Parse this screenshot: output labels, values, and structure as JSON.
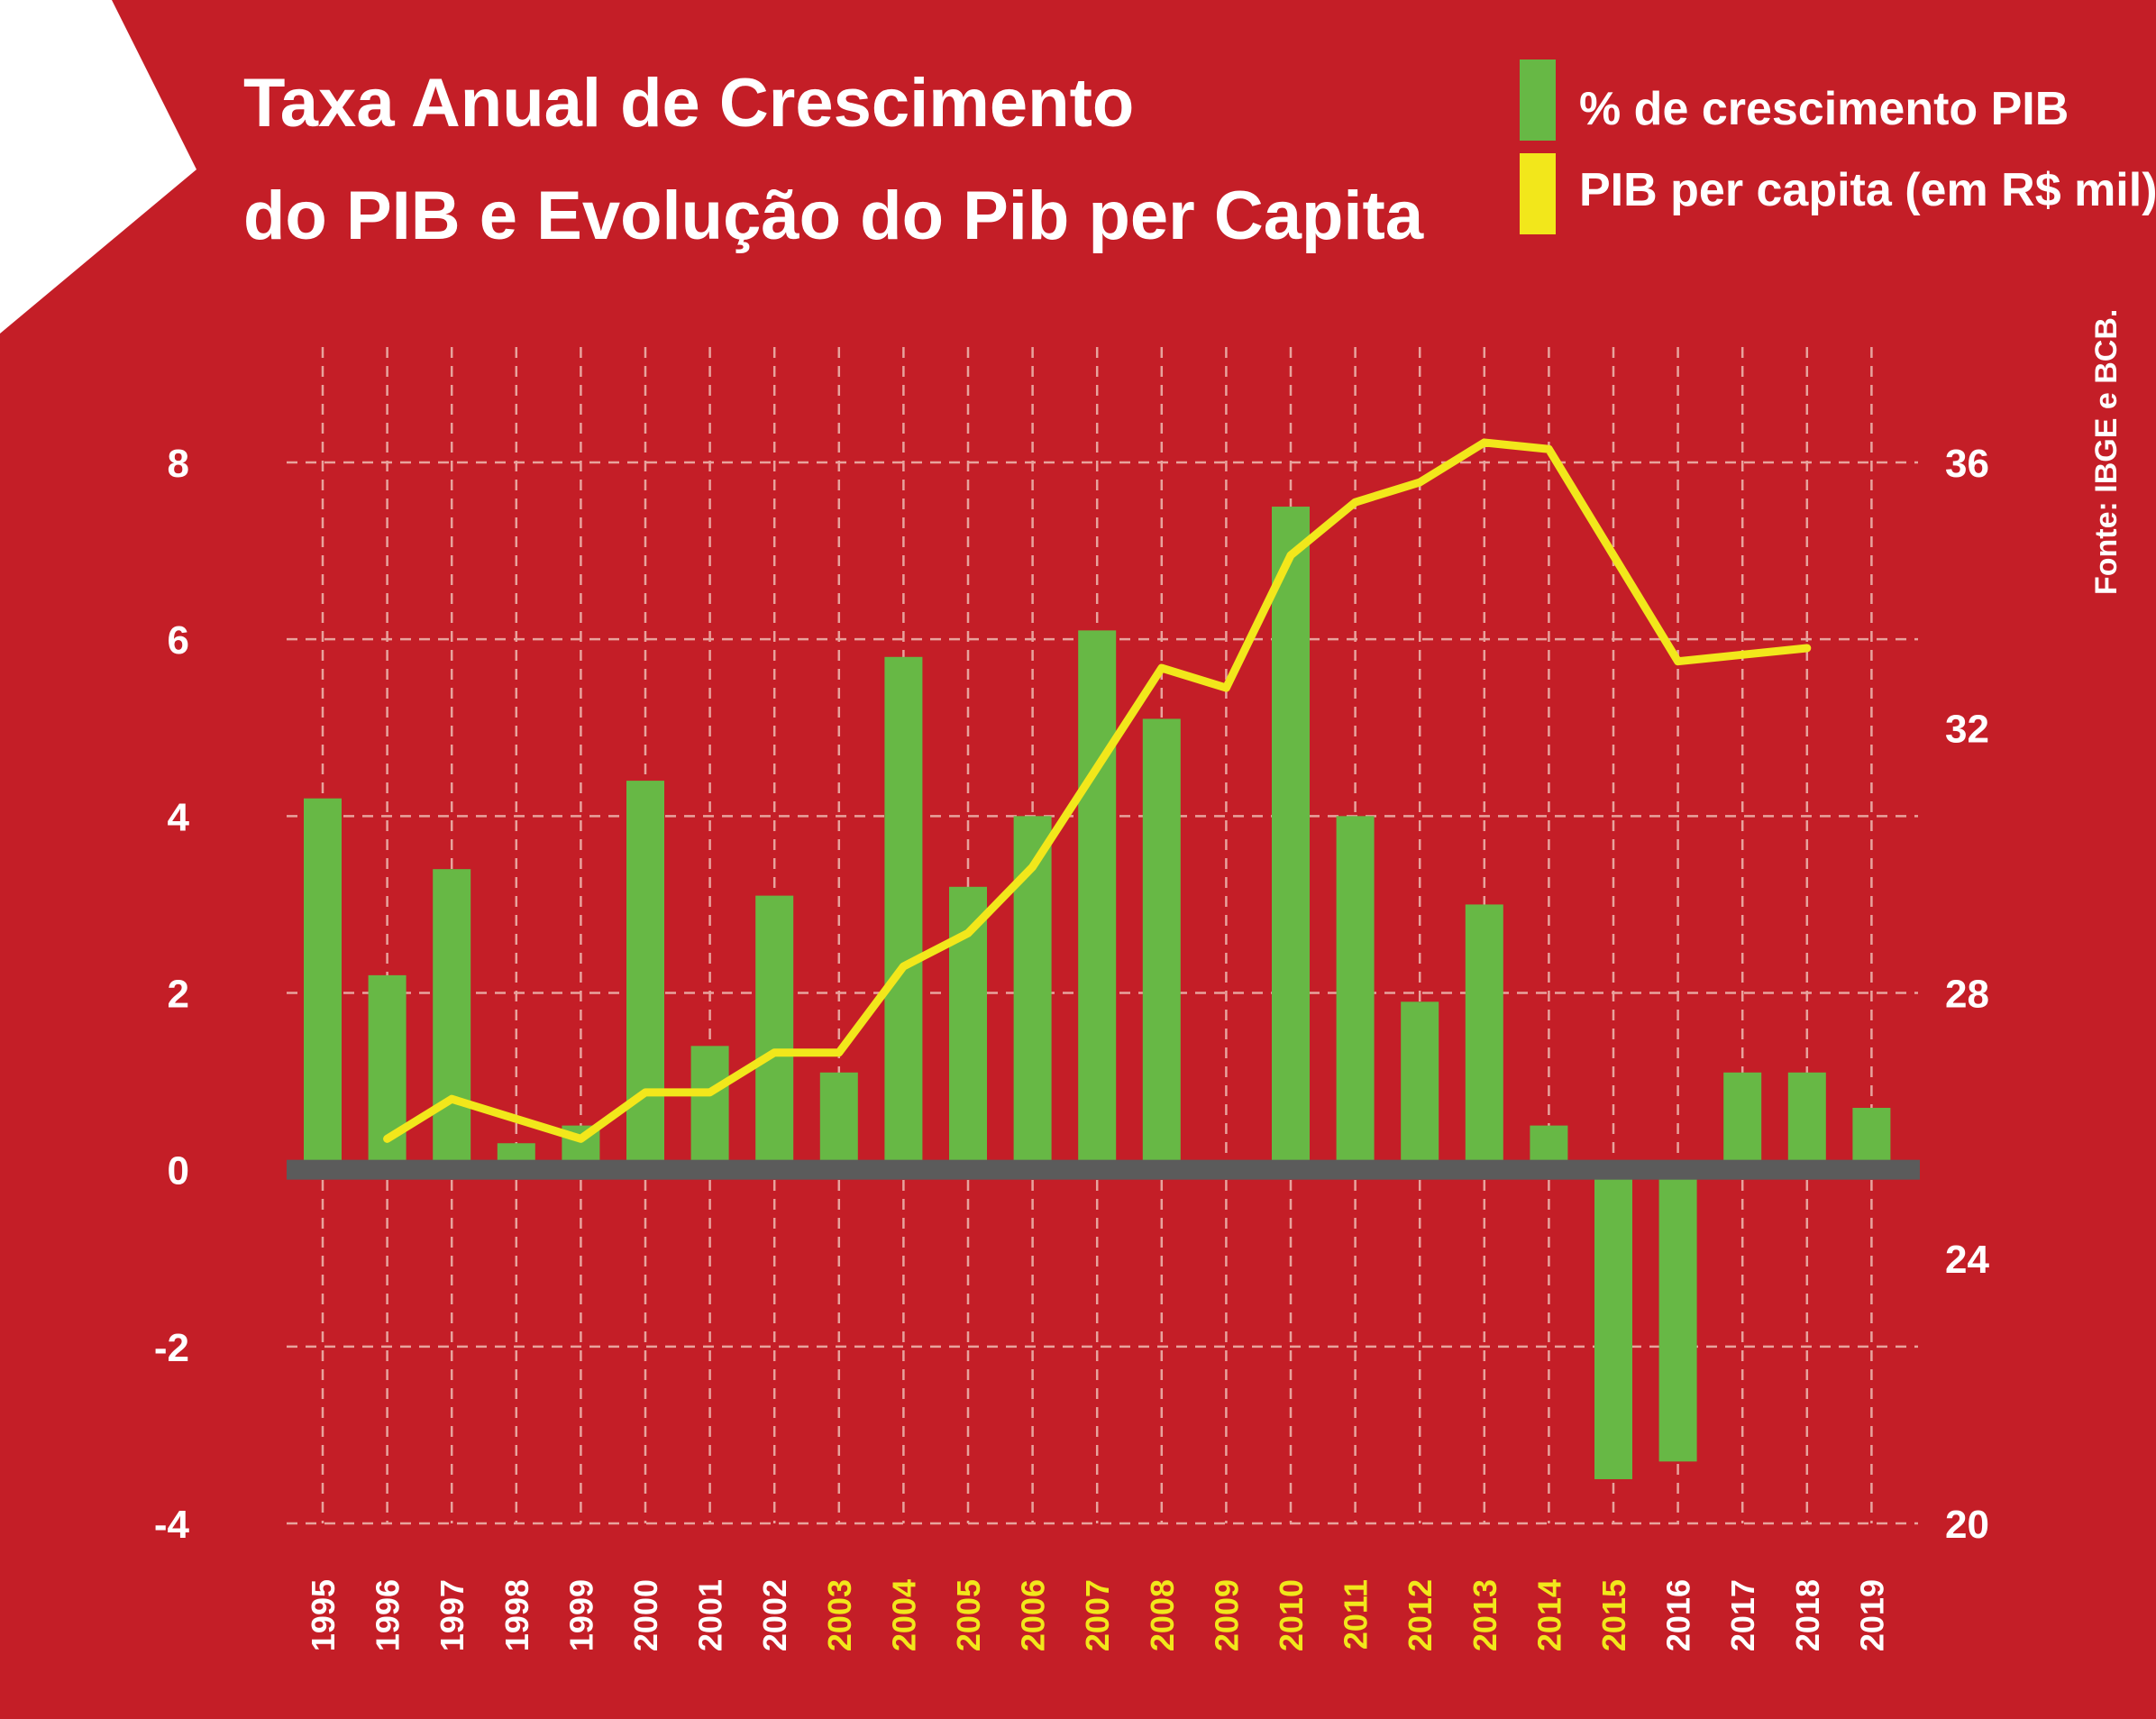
{
  "colors": {
    "background": "#c41e27",
    "bar": "#67b845",
    "line": "#f2e71b",
    "zero_axis": "#5b5b5b",
    "grid": "#e8a39d",
    "text": "#ffffff",
    "year_highlight": "#f2e71b"
  },
  "source": "Fonte: IBGE e BCB.",
  "chart_data": {
    "type": "bar",
    "title": "Taxa Anual de Crescimento do PIB e Evolução do Pib per Capita",
    "title_lines": [
      "Taxa Anual de Crescimento",
      "do PIB e Evolução do Pib per Capita"
    ],
    "legend": [
      {
        "label": "% de crescimento PIB",
        "color": "#67b845"
      },
      {
        "label": "PIB per capita (em R$ mil)",
        "color": "#f2e71b"
      }
    ],
    "legend_position": "top-right",
    "categories": [
      "1995",
      "1996",
      "1997",
      "1998",
      "1999",
      "2000",
      "2001",
      "2002",
      "2003",
      "2004",
      "2005",
      "2006",
      "2007",
      "2008",
      "2009",
      "2010",
      "2011",
      "2012",
      "2013",
      "2014",
      "2015",
      "2016",
      "2017",
      "2018",
      "2019"
    ],
    "highlighted_categories": [
      "2003",
      "2004",
      "2005",
      "2006",
      "2007",
      "2008",
      "2009",
      "2010",
      "2011",
      "2012",
      "2013",
      "2014",
      "2015"
    ],
    "left_axis": {
      "min": -4,
      "max": 8,
      "ticks": [
        "8",
        "6",
        "4",
        "2",
        "0",
        "-2",
        "-4"
      ]
    },
    "right_axis": {
      "min": 20,
      "max": 36,
      "ticks": [
        "36",
        "32",
        "28",
        "24",
        "20"
      ]
    },
    "grid": true,
    "series": [
      {
        "name": "% de crescimento PIB",
        "type": "bar",
        "axis": "left",
        "values": [
          4.2,
          2.2,
          3.4,
          0.3,
          0.5,
          4.4,
          1.4,
          3.1,
          1.1,
          5.8,
          3.2,
          4.0,
          6.1,
          5.1,
          -0.1,
          7.5,
          4.0,
          1.9,
          3.0,
          0.5,
          -3.5,
          -3.3,
          1.1,
          1.1,
          0.7
        ]
      },
      {
        "name": "PIB per capita (em R$ mil)",
        "type": "line",
        "axis": "right",
        "x": [
          "1996",
          "1997",
          "1998",
          "1999",
          "2000",
          "2001",
          "2002",
          "2003",
          "2004",
          "2005",
          "2006",
          "2007",
          "2008",
          "2009",
          "2010",
          "2011",
          "2012",
          "2013",
          "2014",
          "2015",
          "2016",
          "2017",
          "2018"
        ],
        "values": [
          25.8,
          26.4,
          26.1,
          25.8,
          26.5,
          26.5,
          27.1,
          27.1,
          28.4,
          28.9,
          29.9,
          31.4,
          32.9,
          32.6,
          34.6,
          35.4,
          35.7,
          36.3,
          36.2,
          34.6,
          33.0,
          33.1,
          33.2
        ]
      }
    ]
  }
}
